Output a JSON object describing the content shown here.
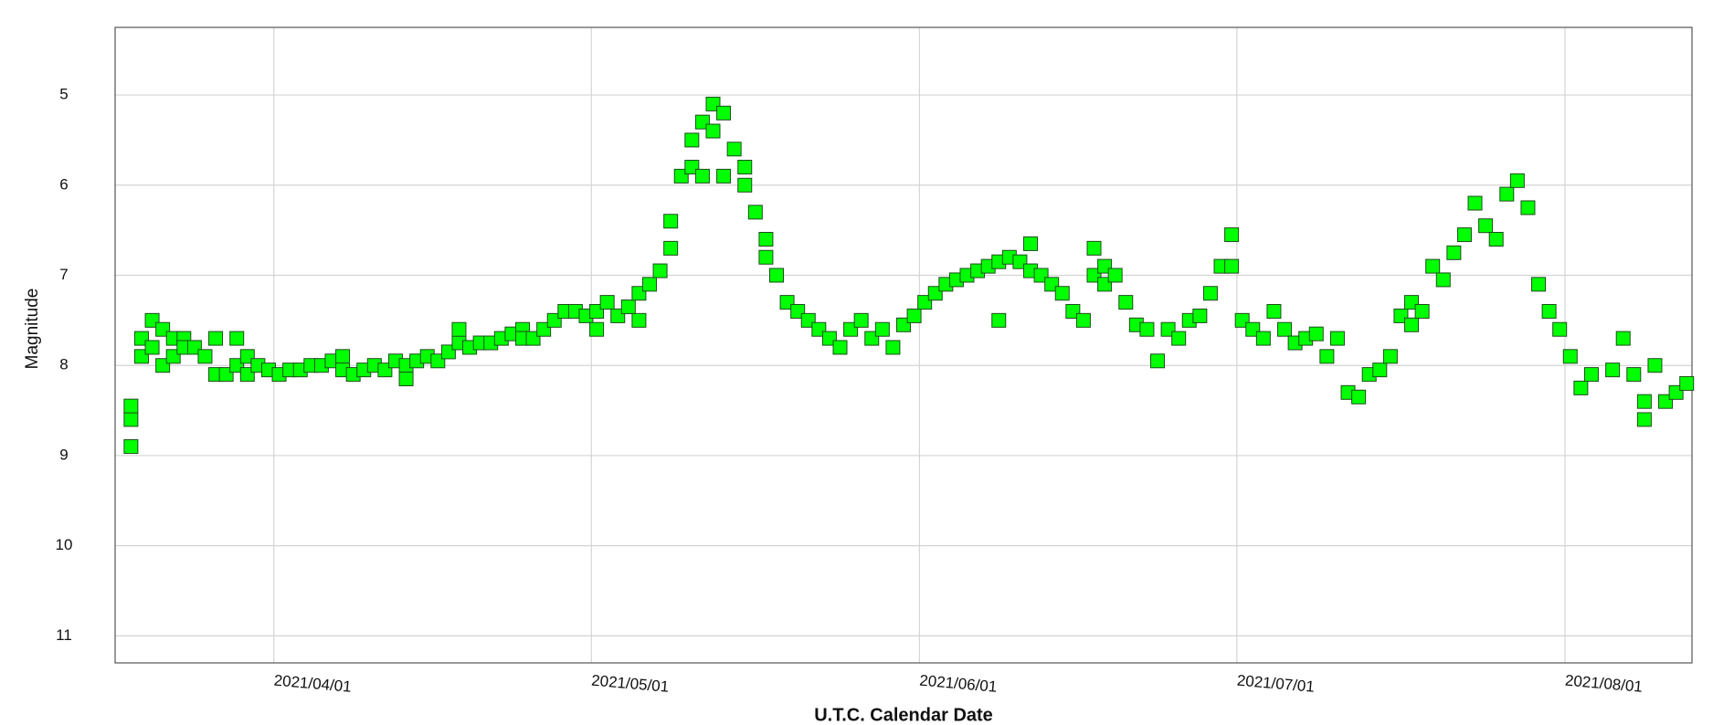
{
  "chart_data": {
    "type": "scatter",
    "x_label": "U.T.C. Calendar Date",
    "y_label": "Magnitude",
    "xlim": [
      "2021/03/17",
      "2021/08/13"
    ],
    "xticks": [
      "2021/04/01",
      "2021/05/01",
      "2021/06/01",
      "2021/07/01",
      "2021/08/01"
    ],
    "ylim": [
      11.3,
      4.25
    ],
    "yticks": [
      5,
      6,
      7,
      8,
      9,
      10,
      11
    ],
    "grid": true,
    "color": "#00ff00",
    "x": [
      "2021/03/18",
      "2021/03/18",
      "2021/03/18",
      "2021/03/19",
      "2021/03/19",
      "2021/03/20",
      "2021/03/20",
      "2021/03/21",
      "2021/03/21",
      "2021/03/22",
      "2021/03/22",
      "2021/03/23",
      "2021/03/23",
      "2021/03/24",
      "2021/03/25",
      "2021/03/26",
      "2021/03/26",
      "2021/03/27",
      "2021/03/28",
      "2021/03/28",
      "2021/03/29",
      "2021/03/29",
      "2021/03/30",
      "2021/03/31",
      "2021/04/01",
      "2021/04/02",
      "2021/04/03",
      "2021/04/04",
      "2021/04/05",
      "2021/04/06",
      "2021/04/07",
      "2021/04/07",
      "2021/04/08",
      "2021/04/09",
      "2021/04/10",
      "2021/04/11",
      "2021/04/12",
      "2021/04/13",
      "2021/04/13",
      "2021/04/14",
      "2021/04/15",
      "2021/04/16",
      "2021/04/17",
      "2021/04/18",
      "2021/04/18",
      "2021/04/19",
      "2021/04/20",
      "2021/04/21",
      "2021/04/22",
      "2021/04/23",
      "2021/04/24",
      "2021/04/24",
      "2021/04/25",
      "2021/04/26",
      "2021/04/27",
      "2021/04/28",
      "2021/04/29",
      "2021/04/30",
      "2021/05/01",
      "2021/05/01",
      "2021/05/02",
      "2021/05/03",
      "2021/05/04",
      "2021/05/05",
      "2021/05/05",
      "2021/05/06",
      "2021/05/07",
      "2021/05/08",
      "2021/05/08",
      "2021/05/09",
      "2021/05/10",
      "2021/05/10",
      "2021/05/11",
      "2021/05/11",
      "2021/05/12",
      "2021/05/12",
      "2021/05/13",
      "2021/05/13",
      "2021/05/14",
      "2021/05/15",
      "2021/05/15",
      "2021/05/16",
      "2021/05/17",
      "2021/05/17",
      "2021/05/18",
      "2021/05/19",
      "2021/05/20",
      "2021/05/21",
      "2021/05/22",
      "2021/05/23",
      "2021/05/24",
      "2021/05/25",
      "2021/05/26",
      "2021/05/27",
      "2021/05/28",
      "2021/05/29",
      "2021/05/30",
      "2021/05/31",
      "2021/06/01",
      "2021/06/02",
      "2021/06/03",
      "2021/06/04",
      "2021/06/05",
      "2021/06/06",
      "2021/06/07",
      "2021/06/08",
      "2021/06/08",
      "2021/06/09",
      "2021/06/10",
      "2021/06/11",
      "2021/06/11",
      "2021/06/12",
      "2021/06/13",
      "2021/06/14",
      "2021/06/15",
      "2021/06/16",
      "2021/06/17",
      "2021/06/17",
      "2021/06/18",
      "2021/06/18",
      "2021/06/19",
      "2021/06/20",
      "2021/06/21",
      "2021/06/22",
      "2021/06/23",
      "2021/06/24",
      "2021/06/25",
      "2021/06/26",
      "2021/06/27",
      "2021/06/28",
      "2021/06/29",
      "2021/06/30",
      "2021/06/30",
      "2021/07/01",
      "2021/07/02",
      "2021/07/03",
      "2021/07/04",
      "2021/07/05",
      "2021/07/06",
      "2021/07/07",
      "2021/07/08",
      "2021/07/09",
      "2021/07/10",
      "2021/07/11",
      "2021/07/12",
      "2021/07/13",
      "2021/07/14",
      "2021/07/15",
      "2021/07/16",
      "2021/07/17",
      "2021/07/17",
      "2021/07/18",
      "2021/07/19",
      "2021/07/20",
      "2021/07/21",
      "2021/07/22",
      "2021/07/23",
      "2021/07/24",
      "2021/07/25",
      "2021/07/26",
      "2021/07/27",
      "2021/07/28",
      "2021/07/29",
      "2021/07/30",
      "2021/07/31",
      "2021/08/01",
      "2021/08/02",
      "2021/08/03",
      "2021/08/05",
      "2021/08/06",
      "2021/08/07",
      "2021/08/08",
      "2021/08/08",
      "2021/08/09",
      "2021/08/10",
      "2021/08/11",
      "2021/08/12"
    ],
    "values": [
      8.9,
      8.6,
      8.45,
      7.9,
      7.7,
      7.5,
      7.8,
      7.6,
      8.0,
      7.7,
      7.9,
      7.7,
      7.8,
      7.8,
      7.9,
      7.7,
      8.1,
      8.1,
      8.0,
      7.7,
      7.9,
      8.1,
      8.0,
      8.05,
      8.1,
      8.05,
      8.05,
      8.0,
      8.0,
      7.95,
      7.9,
      8.05,
      8.1,
      8.05,
      8.0,
      8.05,
      7.95,
      8.0,
      8.15,
      7.95,
      7.9,
      7.95,
      7.85,
      7.75,
      7.6,
      7.8,
      7.75,
      7.75,
      7.7,
      7.65,
      7.6,
      7.7,
      7.7,
      7.6,
      7.5,
      7.4,
      7.4,
      7.45,
      7.4,
      7.6,
      7.3,
      7.45,
      7.35,
      7.2,
      7.5,
      7.1,
      6.95,
      6.4,
      6.7,
      5.9,
      5.5,
      5.8,
      5.3,
      5.9,
      5.1,
      5.4,
      5.2,
      5.9,
      5.6,
      5.8,
      6.0,
      6.3,
      6.6,
      6.8,
      7.0,
      7.3,
      7.4,
      7.5,
      7.6,
      7.7,
      7.8,
      7.6,
      7.5,
      7.7,
      7.6,
      7.8,
      7.55,
      7.45,
      7.3,
      7.2,
      7.1,
      7.05,
      7.0,
      6.95,
      6.9,
      6.85,
      7.5,
      6.8,
      6.85,
      6.65,
      6.95,
      7.0,
      7.1,
      7.2,
      7.4,
      7.5,
      6.7,
      7.0,
      6.9,
      7.1,
      7.0,
      7.3,
      7.55,
      7.6,
      7.95,
      7.6,
      7.7,
      7.5,
      7.45,
      7.2,
      6.9,
      6.55,
      6.9,
      7.5,
      7.6,
      7.7,
      7.4,
      7.6,
      7.75,
      7.7,
      7.65,
      7.9,
      7.7,
      8.3,
      8.35,
      8.1,
      8.05,
      7.9,
      7.45,
      7.3,
      7.55,
      7.4,
      6.9,
      7.05,
      6.75,
      6.55,
      6.2,
      6.45,
      6.6,
      6.1,
      5.95,
      6.25,
      7.1,
      7.4,
      7.6,
      7.9,
      8.25,
      8.1,
      8.05,
      7.7,
      8.1,
      8.4,
      8.6,
      8.0,
      8.4,
      8.3,
      8.2
    ]
  }
}
